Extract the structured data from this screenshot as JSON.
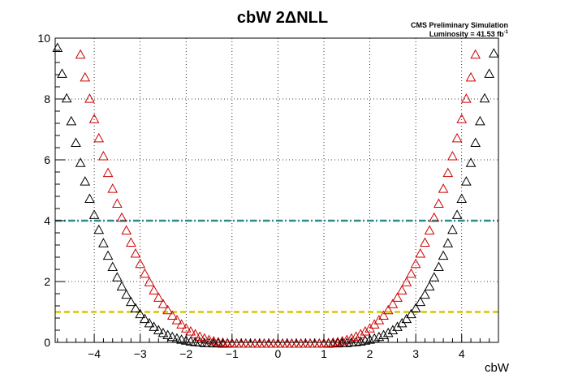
{
  "chart_data": {
    "type": "scatter",
    "title": "cbW 2ΔNLL",
    "xlabel": "cbW",
    "ylabel": "",
    "annotation": {
      "line1": "CMS Preliminary Simulation",
      "line2_prefix": "Luminosity = 41.53 fb",
      "line2_sup": "-1"
    },
    "xlim": [
      -4.85,
      4.8
    ],
    "ylim": [
      0,
      10
    ],
    "x_ticks": [
      -4,
      -3,
      -2,
      -1,
      0,
      1,
      2,
      3,
      4
    ],
    "x_tick_labels": [
      "−4",
      "−3",
      "−2",
      "−1",
      "0",
      "1",
      "2",
      "3",
      "4"
    ],
    "y_ticks": [
      0,
      2,
      4,
      6,
      8,
      10
    ],
    "y_tick_labels": [
      "0",
      "2",
      "4",
      "6",
      "8",
      "10"
    ],
    "grid": true,
    "reference_lines": [
      {
        "y": 4,
        "color": "#2e8b8b",
        "style": "dash-dot"
      },
      {
        "y": 1,
        "color": "#d4c800",
        "style": "dashed"
      }
    ],
    "series": [
      {
        "color": "#000000",
        "marker": "open-triangle",
        "x": [
          -4.8,
          -4.7,
          -4.6,
          -4.5,
          -4.4,
          -4.3,
          -4.2,
          -4.1,
          -4.0,
          -3.9,
          -3.8,
          -3.7,
          -3.6,
          -3.5,
          -3.4,
          -3.3,
          -3.2,
          -3.1,
          -3.0,
          -2.9,
          -2.8,
          -2.7,
          -2.6,
          -2.5,
          -2.4,
          -2.3,
          -2.2,
          -2.1,
          -2.0,
          -1.9,
          -1.8,
          -1.7,
          -1.6,
          -1.5,
          -1.4,
          -1.3,
          -1.2,
          -1.1,
          -1.0,
          -0.9,
          -0.8,
          -0.7,
          -0.6,
          -0.5,
          -0.4,
          -0.3,
          -0.2,
          -0.1,
          0.0,
          0.1,
          0.2,
          0.3,
          0.4,
          0.5,
          0.6,
          0.7,
          0.8,
          0.9,
          1.0,
          1.1,
          1.2,
          1.3,
          1.4,
          1.5,
          1.6,
          1.7,
          1.8,
          1.9,
          2.0,
          2.1,
          2.2,
          2.3,
          2.4,
          2.5,
          2.6,
          2.7,
          2.8,
          2.9,
          3.0,
          3.1,
          3.2,
          3.3,
          3.4,
          3.5,
          3.6,
          3.7,
          3.8,
          3.9,
          4.0,
          4.1,
          4.2,
          4.3,
          4.4,
          4.5,
          4.6,
          4.7
        ],
        "y": [
          9.72,
          8.87,
          8.06,
          7.31,
          6.6,
          5.94,
          5.33,
          4.76,
          4.23,
          3.74,
          3.3,
          2.89,
          2.52,
          2.18,
          1.88,
          1.61,
          1.37,
          1.16,
          0.97,
          0.81,
          0.67,
          0.55,
          0.44,
          0.35,
          0.28,
          0.22,
          0.17,
          0.13,
          0.1,
          0.07,
          0.05,
          0.04,
          0.02,
          0.02,
          0.01,
          0.01,
          0.0,
          0.0,
          0.0,
          0.0,
          0.0,
          0.0,
          0.0,
          0.0,
          0.0,
          0.0,
          0.0,
          0.0,
          0.0,
          0.0,
          0.0,
          0.0,
          0.0,
          0.0,
          0.0,
          0.0,
          0.0,
          0.0,
          0.0,
          0.0,
          0.01,
          0.01,
          0.02,
          0.02,
          0.04,
          0.05,
          0.07,
          0.1,
          0.13,
          0.17,
          0.22,
          0.28,
          0.35,
          0.44,
          0.55,
          0.67,
          0.81,
          0.97,
          1.16,
          1.37,
          1.61,
          1.88,
          2.18,
          2.52,
          2.89,
          3.3,
          3.74,
          4.23,
          4.76,
          5.33,
          5.94,
          6.6,
          7.31,
          8.06,
          8.87,
          9.54
        ]
      },
      {
        "color": "#cc0000",
        "marker": "open-triangle",
        "x": [
          -4.3,
          -4.2,
          -4.1,
          -4.0,
          -3.9,
          -3.8,
          -3.7,
          -3.6,
          -3.5,
          -3.4,
          -3.3,
          -3.2,
          -3.1,
          -3.0,
          -2.9,
          -2.8,
          -2.7,
          -2.6,
          -2.5,
          -2.4,
          -2.3,
          -2.2,
          -2.1,
          -2.0,
          -1.9,
          -1.8,
          -1.7,
          -1.6,
          -1.5,
          -1.4,
          -1.3,
          -1.2,
          -1.1,
          -1.0,
          -0.9,
          -0.8,
          -0.7,
          -0.6,
          -0.5,
          -0.4,
          -0.3,
          -0.2,
          -0.1,
          0.0,
          0.1,
          0.2,
          0.3,
          0.4,
          0.5,
          0.6,
          0.7,
          0.8,
          0.9,
          1.0,
          1.1,
          1.2,
          1.3,
          1.4,
          1.5,
          1.6,
          1.7,
          1.8,
          1.9,
          2.0,
          2.1,
          2.2,
          2.3,
          2.4,
          2.5,
          2.6,
          2.7,
          2.8,
          2.9,
          3.0,
          3.1,
          3.2,
          3.3,
          3.4,
          3.5,
          3.6,
          3.7,
          3.8,
          3.9,
          4.0,
          4.1,
          4.2,
          4.3
        ],
        "y": [
          9.5,
          8.75,
          8.05,
          7.38,
          6.75,
          6.16,
          5.61,
          5.09,
          4.6,
          4.14,
          3.72,
          3.32,
          2.96,
          2.62,
          2.3,
          2.02,
          1.75,
          1.51,
          1.3,
          1.1,
          0.92,
          0.77,
          0.63,
          0.5,
          0.4,
          0.31,
          0.23,
          0.17,
          0.12,
          0.08,
          0.05,
          0.03,
          0.02,
          0.01,
          0.0,
          0.0,
          0.0,
          0.0,
          0.0,
          0.0,
          0.0,
          0.0,
          0.0,
          0.0,
          0.0,
          0.0,
          0.0,
          0.0,
          0.0,
          0.0,
          0.0,
          0.0,
          0.0,
          0.01,
          0.02,
          0.03,
          0.05,
          0.08,
          0.12,
          0.17,
          0.23,
          0.31,
          0.4,
          0.5,
          0.63,
          0.77,
          0.92,
          1.1,
          1.3,
          1.51,
          1.75,
          2.02,
          2.3,
          2.62,
          2.96,
          3.32,
          3.72,
          4.14,
          4.6,
          5.09,
          5.61,
          6.16,
          6.75,
          7.38,
          8.05,
          8.75,
          9.5
        ]
      }
    ]
  }
}
